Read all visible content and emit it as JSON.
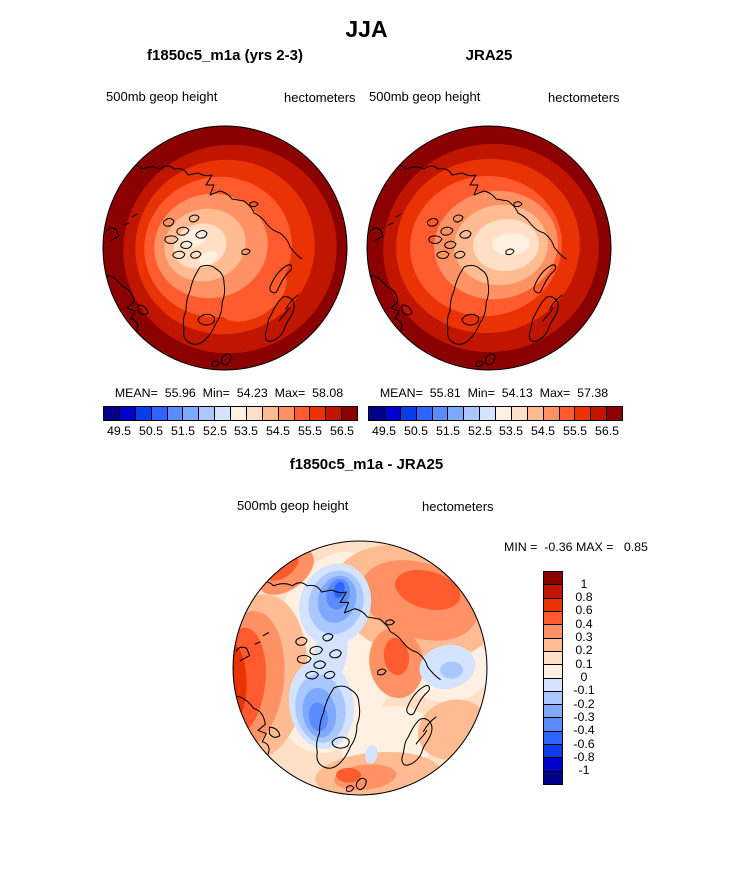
{
  "header": {
    "title": "JJA"
  },
  "palette": [
    "#00008B",
    "#0000CD",
    "#0C3BE8",
    "#2E64FF",
    "#5B8CFF",
    "#7FA8FF",
    "#A9C8FF",
    "#D4E3FF",
    "#FFF0E1",
    "#FFDFC6",
    "#FFBC93",
    "#FF9265",
    "#FF5B2E",
    "#E93305",
    "#C01601",
    "#8B0000"
  ],
  "panels": {
    "model": {
      "title": "f1850c5_m1a (yrs 2-3)",
      "field_label": "500mb geop height",
      "units_label": "hectometers",
      "stats_text": "MEAN=  55.96  Min=  54.23  Max=  58.08"
    },
    "obs": {
      "title": "JRA25",
      "field_label": "500mb geop height",
      "units_label": "hectometers",
      "stats_text": "MEAN=  55.81  Min=  54.13  Max=  57.38"
    },
    "diff": {
      "title": "f1850c5_m1a - JRA25",
      "field_label": "500mb geop height",
      "units_label": "hectometers",
      "stats_text": "MIN =  -0.36 MAX =   0.85"
    }
  },
  "colorbar": {
    "ticks": [
      "49.5",
      "50.5",
      "51.5",
      "52.5",
      "53.5",
      "54.5",
      "55.5",
      "56.5"
    ]
  },
  "diff_colorbar": {
    "ticks": [
      "1",
      "0.8",
      "0.6",
      "0.4",
      "0.3",
      "0.2",
      "0.1",
      "0",
      "-0.1",
      "-0.2",
      "-0.3",
      "-0.4",
      "-0.6",
      "-0.8",
      "-1"
    ]
  },
  "chart_data": [
    {
      "type": "heatmap",
      "subtype": "north-polar-stereographic-contour-map",
      "title": "f1850c5_m1a (yrs 2-3)",
      "season": "JJA",
      "variable": "500mb geop height",
      "units": "hectometers",
      "stats": {
        "mean": 55.96,
        "min": 54.23,
        "max": 58.08
      },
      "contour_levels": [
        49.5,
        50.0,
        50.5,
        51.0,
        51.5,
        52.0,
        52.5,
        53.0,
        53.5,
        54.0,
        54.5,
        55.0,
        55.5,
        56.0,
        56.5
      ],
      "colorbar_tick_labels": [
        "49.5",
        "50.5",
        "51.5",
        "52.5",
        "53.5",
        "54.5",
        "55.5",
        "56.5"
      ],
      "legend_position": "bottom",
      "palette_direction": "blue-low-to-red-high",
      "pattern_note": "high values (dark red) at map rim, lowest values (pale peach) near pole offset toward Canadian Arctic"
    },
    {
      "type": "heatmap",
      "subtype": "north-polar-stereographic-contour-map",
      "title": "JRA25",
      "season": "JJA",
      "variable": "500mb geop height",
      "units": "hectometers",
      "stats": {
        "mean": 55.81,
        "min": 54.13,
        "max": 57.38
      },
      "contour_levels": [
        49.5,
        50.0,
        50.5,
        51.0,
        51.5,
        52.0,
        52.5,
        53.0,
        53.5,
        54.0,
        54.5,
        55.0,
        55.5,
        56.0,
        56.5
      ],
      "colorbar_tick_labels": [
        "49.5",
        "50.5",
        "51.5",
        "52.5",
        "53.5",
        "54.5",
        "55.5",
        "56.5"
      ],
      "legend_position": "bottom",
      "palette_direction": "blue-low-to-red-high",
      "pattern_note": "same pattern as model; pale minimum region elongated east-west near pole"
    },
    {
      "type": "heatmap",
      "subtype": "north-polar-stereographic-contour-map",
      "title": "f1850c5_m1a - JRA25",
      "season": "JJA",
      "variable": "500mb geop height",
      "units": "hectometers",
      "stats": {
        "min": -0.36,
        "max": 0.85
      },
      "contour_levels": [
        -1,
        -0.8,
        -0.6,
        -0.4,
        -0.3,
        -0.2,
        -0.1,
        0,
        0.1,
        0.2,
        0.3,
        0.4,
        0.6,
        0.8,
        1
      ],
      "colorbar_tick_labels": [
        "1",
        "0.8",
        "0.6",
        "0.4",
        "0.3",
        "0.2",
        "0.1",
        "0",
        "-0.1",
        "-0.2",
        "-0.3",
        "-0.4",
        "-0.6",
        "-0.8",
        "-1"
      ],
      "legend_position": "right",
      "palette_direction": "red-positive-top-to-blue-negative-bottom",
      "pattern_note": "positive (orange/red) differences over Atlantic sector and Siberia; negative (blue) centers over Beaufort/Arctic ocean and Greenland; weak negative patch over eastern Siberia"
    }
  ]
}
